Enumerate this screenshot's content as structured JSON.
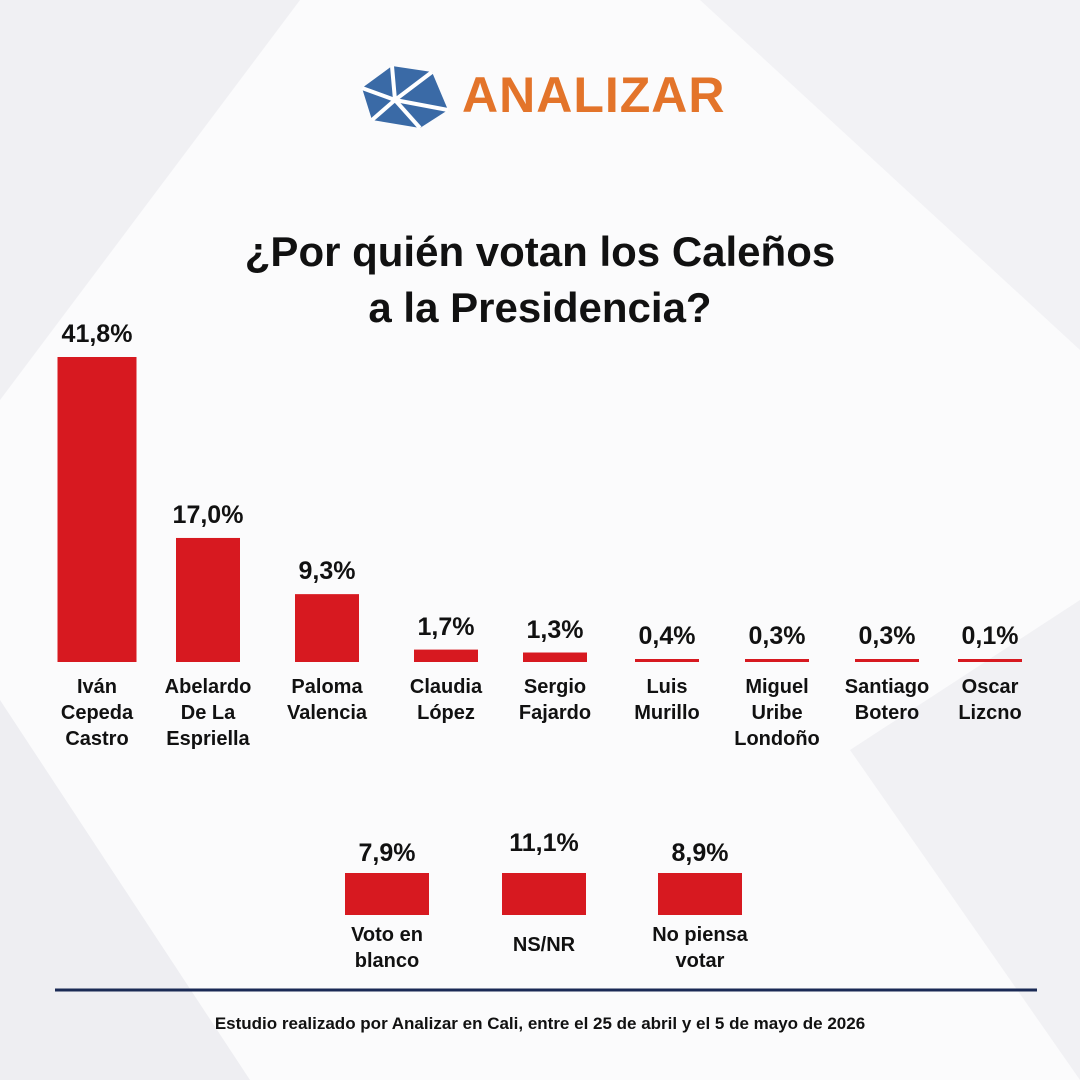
{
  "brand": "ANALIZAR",
  "chart_data": [
    {
      "type": "bar",
      "title": [
        "¿Por quién votan los Caleños",
        "a la Presidencia?"
      ],
      "categories": [
        "Iván Cepeda Castro",
        "Abelardo De La Espriella",
        "Paloma Valencia",
        "Claudia López",
        "Sergio Fajardo",
        "Luis Murillo",
        "Miguel Uribe Londoño",
        "Santiago Botero",
        "Oscar Lizcno"
      ],
      "values": [
        41.8,
        17.0,
        9.3,
        1.7,
        1.3,
        0.4,
        0.3,
        0.3,
        0.1
      ],
      "value_labels": [
        "41,8%",
        "17,0%",
        "9,3%",
        "1,7%",
        "1,3%",
        "0,4%",
        "0,3%",
        "0,3%",
        "0,1%"
      ],
      "color": "#d71920"
    },
    {
      "type": "bar",
      "categories": [
        "Voto en blanco",
        "NS/NR",
        "No piensa votar"
      ],
      "values": [
        7.9,
        11.1,
        8.9
      ],
      "value_labels": [
        "7,9%",
        "11,1%",
        "8,9%"
      ],
      "color": "#d71920"
    }
  ],
  "footer": "Estudio realizado por Analizar en Cali, entre el 25 de abril y el 5 de mayo de 2026"
}
